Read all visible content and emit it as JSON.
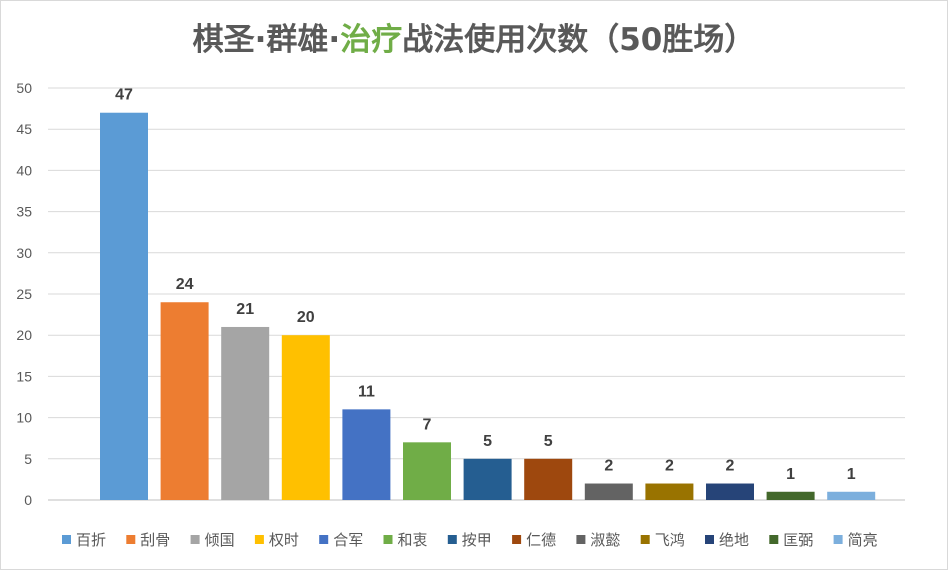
{
  "title": {
    "prefix": "棋圣·群雄·",
    "accent": "治疗",
    "suffix": "战法使用次数（50胜场）",
    "accent_color": "#70ad47"
  },
  "chart_data": {
    "type": "bar",
    "title": "棋圣·群雄·治疗战法使用次数（50胜场）",
    "categories": [
      "百折",
      "刮骨",
      "倾国",
      "权时",
      "合军",
      "和衷",
      "按甲",
      "仁德",
      "淑懿",
      "飞鸿",
      "绝地",
      "匡弼",
      "简亮"
    ],
    "values": [
      47,
      24,
      21,
      20,
      11,
      7,
      5,
      5,
      2,
      2,
      2,
      1,
      1
    ],
    "colors": [
      "#5b9bd5",
      "#ed7d31",
      "#a5a5a5",
      "#ffc000",
      "#4472c4",
      "#70ad47",
      "#255e91",
      "#9e480e",
      "#636363",
      "#997300",
      "#264478",
      "#43682b",
      "#7cafdd"
    ],
    "ylim": [
      0,
      50
    ],
    "yticks": [
      0,
      5,
      10,
      15,
      20,
      25,
      30,
      35,
      40,
      45,
      50
    ],
    "xlabel": "",
    "ylabel": "",
    "grid": true,
    "legend": "bottom",
    "data_labels": true
  }
}
